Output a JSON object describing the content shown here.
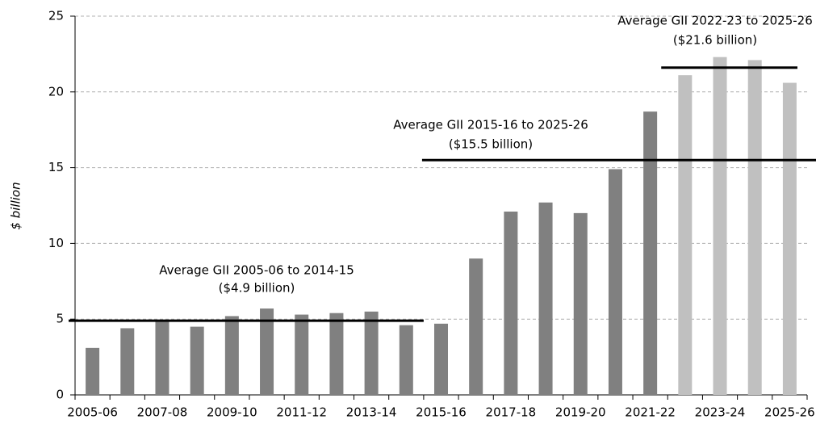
{
  "chart_data": {
    "type": "bar",
    "y_label": "$ billion",
    "categories": [
      "2005-06",
      null,
      "2007-08",
      null,
      "2009-10",
      null,
      "2011-12",
      null,
      "2013-14",
      null,
      "2015-16",
      null,
      "2017-18",
      null,
      "2019-20",
      null,
      "2021-22",
      null,
      "2023-24",
      null,
      "2025-26"
    ],
    "values": [
      3.1,
      4.4,
      4.9,
      4.5,
      5.2,
      5.7,
      5.3,
      5.4,
      5.5,
      4.6,
      4.7,
      9.0,
      12.1,
      12.7,
      12.0,
      14.9,
      18.7,
      21.1,
      22.3,
      22.1,
      20.6
    ],
    "colors": [
      "#808080",
      "#808080",
      "#808080",
      "#808080",
      "#808080",
      "#808080",
      "#808080",
      "#808080",
      "#808080",
      "#808080",
      "#808080",
      "#808080",
      "#808080",
      "#808080",
      "#808080",
      "#808080",
      "#808080",
      "#c0c0c0",
      "#c0c0c0",
      "#c0c0c0",
      "#c0c0c0"
    ],
    "ylim": [
      0,
      25
    ],
    "yticks": [
      0,
      5,
      10,
      15,
      20,
      25
    ],
    "grid": true,
    "averages": [
      {
        "label": "Average GII 2005-06 to 2014-15",
        "value_label": "($4.9 billion)",
        "value": 4.9,
        "start": 0,
        "end": 9
      },
      {
        "label": "Average GII 2015-16 to 2025-26",
        "value_label": "($15.5 billion)",
        "value": 15.5,
        "start": 10,
        "end": 20
      },
      {
        "label": "Average GII 2022-23 to 2025-26",
        "value_label": "($21.6 billion)",
        "value": 21.6,
        "start": 17,
        "end": 20
      }
    ]
  }
}
